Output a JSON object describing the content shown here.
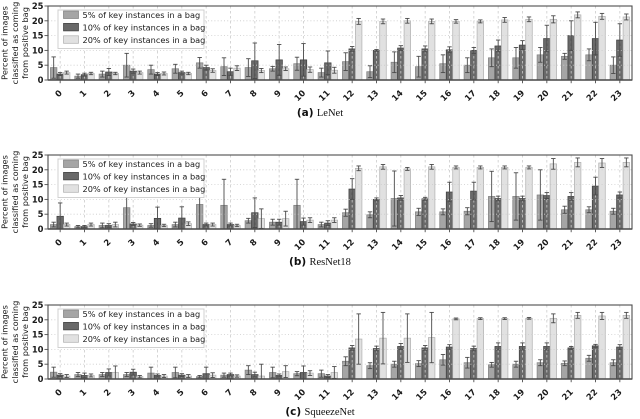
{
  "ylabel_lines": [
    "Percent of images",
    "classified as coming",
    "from positive bag"
  ],
  "style": {
    "bar_fills": [
      "#a5a5a5",
      "#696969",
      "#e1e1e1"
    ],
    "bar_edges": [
      "#7f7f7f",
      "#3d3d3d",
      "#aeaeae"
    ],
    "error_color": "#4a4a4a",
    "grid_color": "#cbcbcb",
    "frame_color": "#4d4d4d",
    "legend_border": "#cccccc",
    "background": "#ffffff"
  },
  "chart_data": [
    {
      "type": "bar",
      "caption_tag": "(a)",
      "caption_name": "LeNet",
      "title": "(a) LeNet",
      "xlabel": "",
      "ylabel": "Percent of images classified as coming from positive bag",
      "ylim": [
        0,
        25
      ],
      "yticks": [
        0,
        5,
        10,
        15,
        20,
        25
      ],
      "grid": true,
      "legend_position": "upper left",
      "categories": [
        "0",
        "1",
        "2",
        "3",
        "4",
        "5",
        "6",
        "7",
        "8",
        "9",
        "10",
        "11",
        "12",
        "13",
        "14",
        "15",
        "16",
        "17",
        "18",
        "19",
        "20",
        "21",
        "22",
        "23"
      ],
      "series": [
        {
          "name": "5% of key instances in a bag",
          "values": [
            4.2,
            1.3,
            2.0,
            5.0,
            3.5,
            3.8,
            5.8,
            4.5,
            4.2,
            3.8,
            5.5,
            2.5,
            6.2,
            2.8,
            6.0,
            4.5,
            5.5,
            5.0,
            7.5,
            7.5,
            8.5,
            8.0,
            8.5,
            5.0
          ],
          "errors": [
            3.6,
            0.7,
            1.0,
            4.0,
            1.5,
            1.5,
            1.8,
            3.0,
            3.0,
            0.8,
            2.2,
            1.5,
            3.0,
            2.0,
            3.5,
            3.5,
            3.0,
            2.5,
            3.0,
            3.5,
            2.5,
            1.0,
            2.0,
            2.8
          ]
        },
        {
          "name": "10% of key instances in a bag",
          "values": [
            2.0,
            1.8,
            2.7,
            3.0,
            2.0,
            2.5,
            4.2,
            2.8,
            6.5,
            6.8,
            6.8,
            5.8,
            10.5,
            10.0,
            10.8,
            10.5,
            10.2,
            10.0,
            11.5,
            11.8,
            14.0,
            15.0,
            14.0,
            13.5
          ],
          "errors": [
            0.5,
            0.5,
            1.2,
            0.7,
            0.5,
            0.5,
            0.8,
            1.2,
            6.0,
            5.2,
            5.5,
            4.0,
            0.8,
            0.3,
            0.8,
            1.0,
            1.0,
            1.0,
            2.0,
            1.5,
            4.5,
            5.0,
            5.5,
            5.5
          ]
        },
        {
          "name": "20% of key instances in a bag",
          "values": [
            2.5,
            2.2,
            2.2,
            2.5,
            2.2,
            2.2,
            3.2,
            4.0,
            3.2,
            3.8,
            3.5,
            3.3,
            19.8,
            19.8,
            20.0,
            19.8,
            19.8,
            19.8,
            20.3,
            20.5,
            20.5,
            22.0,
            21.5,
            21.3
          ],
          "errors": [
            0.5,
            0.4,
            0.4,
            0.5,
            0.5,
            0.4,
            0.6,
            0.8,
            0.7,
            0.6,
            0.9,
            1.0,
            1.0,
            0.8,
            0.8,
            0.8,
            0.6,
            0.5,
            0.8,
            0.8,
            1.2,
            1.0,
            1.0,
            1.0
          ]
        }
      ]
    },
    {
      "type": "bar",
      "caption_tag": "(b)",
      "caption_name": "ResNet18",
      "title": "(b) ResNet18",
      "xlabel": "",
      "ylabel": "Percent of images classified as coming from positive bag",
      "ylim": [
        0,
        25
      ],
      "yticks": [
        0,
        5,
        10,
        15,
        20,
        25
      ],
      "grid": true,
      "legend_position": "upper left",
      "categories": [
        "0",
        "1",
        "2",
        "3",
        "4",
        "5",
        "6",
        "7",
        "8",
        "9",
        "10",
        "11",
        "12",
        "13",
        "14",
        "15",
        "16",
        "17",
        "18",
        "19",
        "20",
        "21",
        "22",
        "23"
      ],
      "series": [
        {
          "name": "5% of key instances in a bag",
          "values": [
            1.5,
            0.8,
            1.2,
            7.2,
            1.2,
            1.5,
            8.3,
            8.0,
            2.8,
            2.3,
            8.0,
            1.5,
            5.5,
            4.8,
            10.3,
            5.8,
            5.8,
            6.0,
            11.0,
            11.0,
            11.5,
            6.5,
            6.5,
            6.0
          ],
          "errors": [
            0.8,
            0.4,
            0.8,
            9.0,
            0.6,
            0.8,
            9.2,
            8.8,
            0.8,
            1.0,
            8.8,
            0.8,
            1.2,
            1.0,
            9.3,
            1.2,
            1.0,
            1.2,
            8.5,
            8.0,
            8.5,
            1.2,
            1.0,
            1.0
          ]
        },
        {
          "name": "10% of key instances in a bag",
          "values": [
            4.3,
            0.8,
            1.2,
            1.7,
            3.6,
            3.7,
            1.5,
            1.5,
            5.5,
            2.3,
            2.5,
            2.0,
            13.5,
            10.0,
            10.5,
            10.2,
            12.5,
            12.8,
            10.3,
            10.3,
            11.3,
            11.0,
            14.5,
            11.5
          ],
          "errors": [
            4.5,
            0.4,
            0.6,
            0.5,
            3.8,
            3.8,
            0.5,
            0.5,
            5.0,
            1.0,
            1.2,
            0.8,
            3.5,
            0.5,
            0.8,
            0.5,
            3.3,
            3.0,
            0.8,
            0.8,
            1.0,
            1.3,
            3.0,
            1.0
          ]
        },
        {
          "name": "20% of key instances in a bag",
          "values": [
            1.5,
            1.5,
            1.5,
            1.3,
            1.2,
            1.8,
            1.5,
            1.2,
            3.5,
            3.5,
            3.0,
            3.0,
            20.5,
            21.0,
            20.3,
            21.0,
            20.8,
            20.8,
            20.8,
            20.8,
            22.0,
            22.5,
            22.3,
            22.5
          ],
          "errors": [
            0.5,
            0.5,
            0.8,
            0.4,
            0.4,
            0.6,
            0.5,
            0.4,
            3.3,
            2.5,
            0.8,
            0.8,
            0.8,
            0.8,
            0.5,
            0.8,
            0.5,
            0.5,
            0.5,
            0.5,
            1.8,
            1.5,
            1.5,
            1.5
          ]
        }
      ]
    },
    {
      "type": "bar",
      "caption_tag": "(c)",
      "caption_name": "SqueezeNet",
      "title": "(c) SqueezeNet",
      "xlabel": "",
      "ylabel": "Percent of images classified as coming from positive bag",
      "ylim": [
        0,
        25
      ],
      "yticks": [
        0,
        5,
        10,
        15,
        20,
        25
      ],
      "grid": true,
      "legend_position": "upper left",
      "categories": [
        "0",
        "1",
        "2",
        "3",
        "4",
        "5",
        "6",
        "7",
        "8",
        "9",
        "10",
        "11",
        "12",
        "13",
        "14",
        "15",
        "16",
        "17",
        "18",
        "19",
        "20",
        "21",
        "22",
        "23"
      ],
      "series": [
        {
          "name": "5% of key instances in a bag",
          "values": [
            2.3,
            1.5,
            1.5,
            1.5,
            2.0,
            2.2,
            0.8,
            1.3,
            3.0,
            2.2,
            1.8,
            1.8,
            6.0,
            4.5,
            5.0,
            5.2,
            6.5,
            5.5,
            4.8,
            5.0,
            5.5,
            5.3,
            7.0,
            5.5
          ],
          "errors": [
            1.7,
            0.7,
            0.7,
            0.7,
            2.0,
            1.8,
            0.4,
            0.7,
            1.5,
            1.8,
            0.7,
            1.2,
            1.5,
            1.0,
            1.0,
            1.0,
            1.8,
            1.8,
            0.8,
            1.0,
            1.0,
            0.8,
            1.0,
            1.0
          ]
        },
        {
          "name": "10% of key instances in a bag",
          "values": [
            1.3,
            1.2,
            2.2,
            2.3,
            1.2,
            1.3,
            1.8,
            1.5,
            1.5,
            1.2,
            2.2,
            1.0,
            10.5,
            10.3,
            11.0,
            10.5,
            10.8,
            10.3,
            11.0,
            11.0,
            11.0,
            10.5,
            11.2,
            10.8
          ],
          "errors": [
            0.5,
            0.8,
            1.2,
            1.0,
            0.5,
            0.5,
            2.2,
            0.5,
            0.8,
            0.5,
            2.2,
            0.5,
            0.8,
            0.8,
            1.0,
            0.8,
            0.8,
            0.8,
            1.2,
            1.2,
            1.2,
            0.5,
            0.5,
            0.8
          ]
        },
        {
          "name": "20% of key instances in a bag",
          "values": [
            1.0,
            1.2,
            2.2,
            0.8,
            1.0,
            1.0,
            1.3,
            1.0,
            1.0,
            2.5,
            2.0,
            2.2,
            13.5,
            13.8,
            13.8,
            14.0,
            20.3,
            20.4,
            20.4,
            20.5,
            20.5,
            21.5,
            21.3,
            21.5
          ],
          "errors": [
            0.5,
            0.5,
            2.2,
            0.4,
            0.5,
            0.5,
            0.8,
            0.4,
            4.0,
            2.0,
            0.8,
            2.0,
            8.5,
            8.7,
            8.2,
            8.5,
            0.3,
            0.3,
            0.3,
            0.3,
            1.5,
            1.0,
            1.2,
            1.0
          ]
        }
      ]
    }
  ]
}
